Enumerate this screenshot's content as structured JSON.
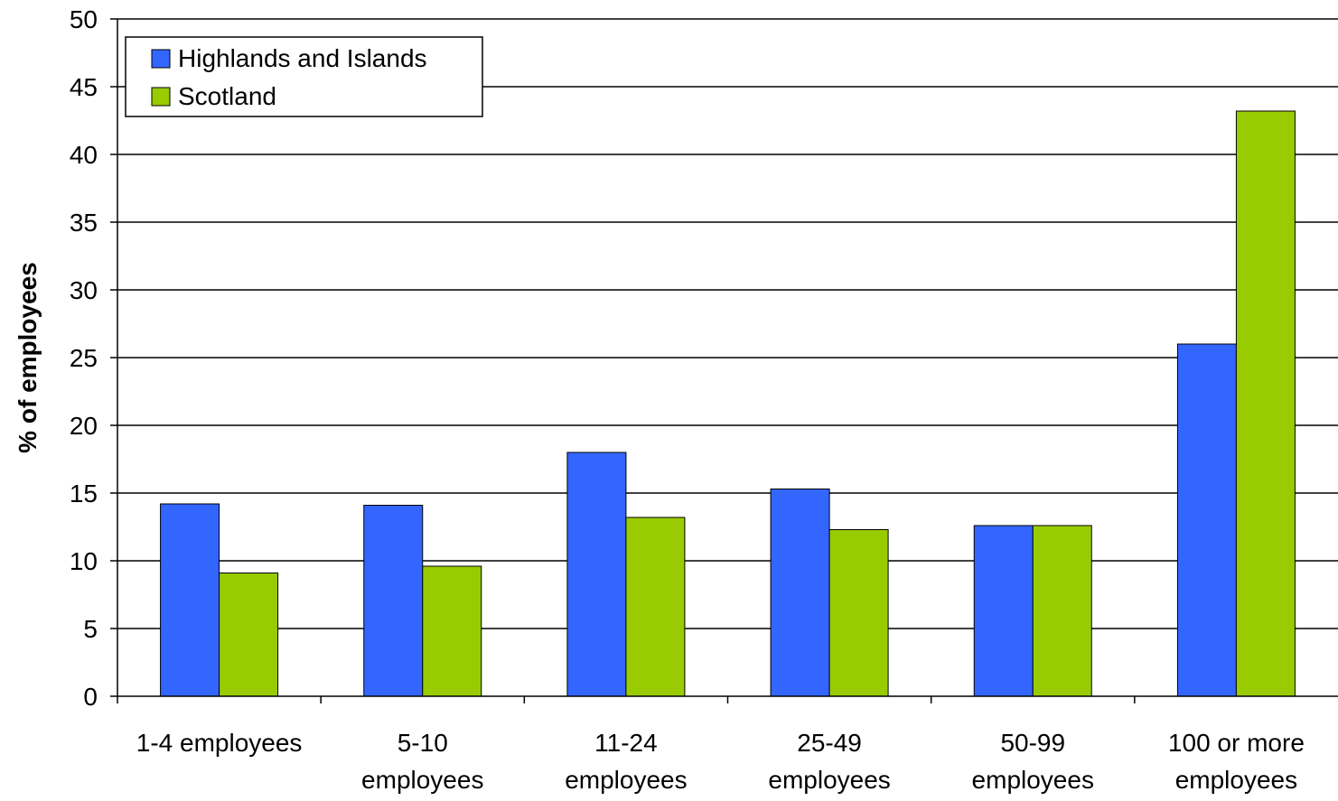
{
  "chart_data": {
    "type": "bar",
    "title": "",
    "xlabel": "",
    "ylabel": "% of employees",
    "ylim": [
      0,
      50
    ],
    "yticks": [
      0,
      5,
      10,
      15,
      20,
      25,
      30,
      35,
      40,
      45,
      50
    ],
    "grid": true,
    "legend_position": "top-left",
    "categories": [
      [
        "1-4 employees"
      ],
      [
        "5-10",
        "employees"
      ],
      [
        "11-24",
        "employees"
      ],
      [
        "25-49",
        "employees"
      ],
      [
        "50-99",
        "employees"
      ],
      [
        "100 or more",
        "employees"
      ]
    ],
    "series": [
      {
        "name": "Highlands and Islands",
        "color": "#3366ff",
        "values": [
          14.2,
          14.1,
          18.0,
          15.3,
          12.6,
          26.0
        ]
      },
      {
        "name": "Scotland",
        "color": "#99cc00",
        "values": [
          9.1,
          9.6,
          13.2,
          12.3,
          12.6,
          43.2
        ]
      }
    ]
  }
}
